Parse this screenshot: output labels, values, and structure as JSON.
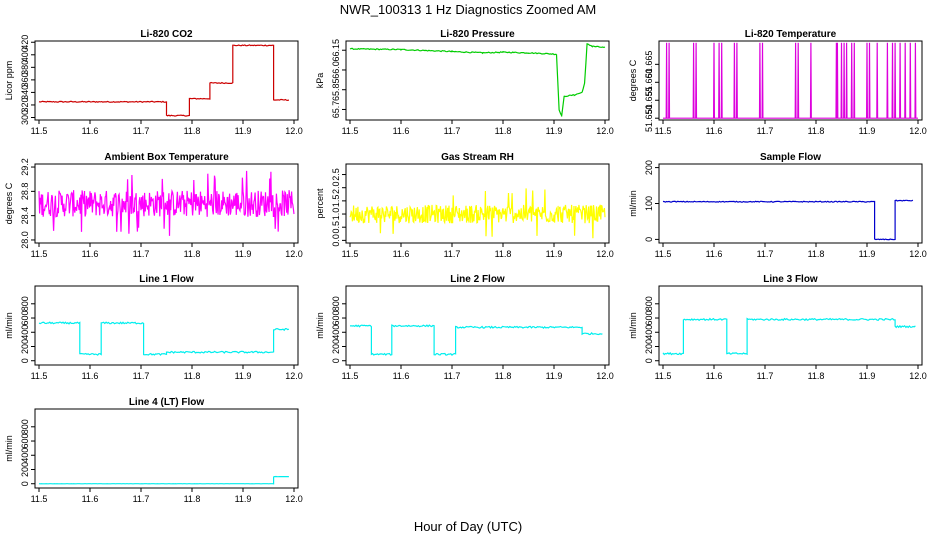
{
  "figure": {
    "title": "NWR_100313  1 Hz Diagnostics Zoomed AM",
    "xlabel": "Hour of Day (UTC)"
  },
  "chart_data": [
    {
      "type": "line",
      "title": "Li-820 CO2",
      "ylabel": "Licor ppm",
      "color": "#cc0000",
      "xlim": [
        11.5,
        12.0
      ],
      "ylim": [
        296,
        422
      ],
      "xticks": [
        "11.5",
        "11.6",
        "11.7",
        "11.8",
        "11.9",
        "12.0"
      ],
      "yticks": [
        {
          "v": 300,
          "label": "300"
        },
        {
          "v": 320,
          "label": "320"
        },
        {
          "v": 340,
          "label": "340"
        },
        {
          "v": 360,
          "label": "360"
        },
        {
          "v": 380,
          "label": "380"
        },
        {
          "v": 400,
          "label": "400"
        },
        {
          "v": 420,
          "label": "420"
        }
      ],
      "noise": 0.8,
      "series": [
        {
          "points": [
            [
              11.5,
              325
            ],
            [
              11.75,
              325
            ],
            [
              11.75,
              303
            ],
            [
              11.795,
              303
            ],
            [
              11.795,
              330
            ],
            [
              11.835,
              330
            ],
            [
              11.835,
              355
            ],
            [
              11.88,
              355
            ],
            [
              11.88,
              415
            ],
            [
              11.96,
              415
            ],
            [
              11.96,
              328
            ],
            [
              11.99,
              328
            ]
          ]
        }
      ]
    },
    {
      "type": "line",
      "title": "Li-820 Pressure",
      "ylabel": "kPa",
      "color": "#00cc00",
      "xlim": [
        11.5,
        12.0
      ],
      "ylim": [
        65.62,
        66.22
      ],
      "xticks": [
        "11.5",
        "11.6",
        "11.7",
        "11.8",
        "11.9",
        "12.0"
      ],
      "yticks": [
        {
          "v": 65.7,
          "label": "65.7"
        },
        {
          "v": 65.85,
          "label": "65.85"
        },
        {
          "v": 66.0,
          "label": "66.0"
        },
        {
          "v": 66.15,
          "label": "66.15"
        }
      ],
      "noise": 0.004,
      "series": [
        {
          "points": [
            [
              11.5,
              66.16
            ],
            [
              11.6,
              66.155
            ],
            [
              11.7,
              66.14
            ],
            [
              11.76,
              66.13
            ],
            [
              11.8,
              66.135
            ],
            [
              11.85,
              66.13
            ],
            [
              11.905,
              66.12
            ],
            [
              11.91,
              65.7
            ],
            [
              11.915,
              65.65
            ],
            [
              11.92,
              65.8
            ],
            [
              11.94,
              65.81
            ],
            [
              11.955,
              65.83
            ],
            [
              11.96,
              65.9
            ],
            [
              11.965,
              66.2
            ],
            [
              11.975,
              66.18
            ],
            [
              12.0,
              66.17
            ]
          ]
        }
      ]
    },
    {
      "type": "line",
      "title": "Li-820 Temperature",
      "ylabel": "degrees C",
      "color": "#dd00dd",
      "xlim": [
        11.5,
        12.0
      ],
      "ylim": [
        51.6495,
        51.6715
      ],
      "xticks": [
        "11.5",
        "11.6",
        "11.7",
        "11.8",
        "11.9",
        "12.0"
      ],
      "yticks": [
        {
          "v": 51.65,
          "label": "51.650"
        },
        {
          "v": 51.655,
          "label": "51.655"
        },
        {
          "v": 51.66,
          "label": "51.660"
        },
        {
          "v": 51.665,
          "label": "51.665"
        }
      ],
      "noise": 0,
      "spikes": {
        "base": 51.65,
        "top": 51.671,
        "at": [
          11.507,
          11.512,
          11.56,
          11.565,
          11.6,
          11.61,
          11.615,
          11.64,
          11.645,
          11.69,
          11.695,
          11.76,
          11.765,
          11.79,
          11.84,
          11.842,
          11.85,
          11.855,
          11.86,
          11.87,
          11.875,
          11.9,
          11.905,
          11.92,
          11.94,
          11.95,
          11.955,
          11.965,
          11.975,
          11.985,
          11.995
        ]
      }
    },
    {
      "type": "line",
      "title": "Ambient Box Temperature",
      "ylabel": "degrees C",
      "color": "#ff00ff",
      "xlim": [
        11.5,
        12.0
      ],
      "ylim": [
        27.95,
        29.25
      ],
      "xticks": [
        "11.5",
        "11.6",
        "11.7",
        "11.8",
        "11.9",
        "12.0"
      ],
      "yticks": [
        {
          "v": 28.0,
          "label": "28.0"
        },
        {
          "v": 28.4,
          "label": "28.4"
        },
        {
          "v": 28.8,
          "label": "28.8"
        },
        {
          "v": 29.2,
          "label": "29.2"
        }
      ],
      "band": {
        "center": 28.6,
        "amp": 0.22,
        "spike": 0.55
      }
    },
    {
      "type": "line",
      "title": "Gas Stream RH",
      "ylabel": "percent",
      "color": "#ffff00",
      "xlim": [
        11.5,
        12.0
      ],
      "ylim": [
        -0.1,
        2.9
      ],
      "xticks": [
        "11.5",
        "11.6",
        "11.7",
        "11.8",
        "11.9",
        "12.0"
      ],
      "yticks": [
        {
          "v": 0.0,
          "label": "0.0"
        },
        {
          "v": 0.5,
          "label": "0.5"
        },
        {
          "v": 1.0,
          "label": "1.0"
        },
        {
          "v": 1.5,
          "label": "1.5"
        },
        {
          "v": 2.0,
          "label": "2.0"
        },
        {
          "v": 2.5,
          "label": "2.5"
        }
      ],
      "band": {
        "center": 1.0,
        "amp": 0.35,
        "spike": 1.0
      }
    },
    {
      "type": "line",
      "title": "Sample Flow",
      "ylabel": "ml/min",
      "color": "#0000cc",
      "xlim": [
        11.5,
        12.0
      ],
      "ylim": [
        -10,
        210
      ],
      "xticks": [
        "11.5",
        "11.6",
        "11.7",
        "11.8",
        "11.9",
        "12.0"
      ],
      "yticks": [
        {
          "v": 0,
          "label": "0"
        },
        {
          "v": 100,
          "label": "100"
        },
        {
          "v": 200,
          "label": "200"
        }
      ],
      "noise": 1.2,
      "series": [
        {
          "points": [
            [
              11.5,
              105
            ],
            [
              11.915,
              105
            ],
            [
              11.915,
              0
            ],
            [
              11.955,
              0
            ],
            [
              11.955,
              108
            ],
            [
              11.99,
              108
            ]
          ]
        }
      ]
    },
    {
      "type": "line",
      "title": "Line 1 Flow",
      "ylabel": "ml/min",
      "color": "#00eeee",
      "xlim": [
        11.5,
        12.0
      ],
      "ylim": [
        -60,
        1050
      ],
      "xticks": [
        "11.5",
        "11.6",
        "11.7",
        "11.8",
        "11.9",
        "12.0"
      ],
      "yticks": [
        {
          "v": 0,
          "label": "0"
        },
        {
          "v": 200,
          "label": "200"
        },
        {
          "v": 400,
          "label": "400"
        },
        {
          "v": 600,
          "label": "600"
        },
        {
          "v": 800,
          "label": "800"
        }
      ],
      "noise": 12,
      "series": [
        {
          "points": [
            [
              11.5,
              530
            ],
            [
              11.58,
              530
            ],
            [
              11.58,
              90
            ],
            [
              11.622,
              90
            ],
            [
              11.622,
              530
            ],
            [
              11.705,
              530
            ],
            [
              11.705,
              90
            ],
            [
              11.75,
              90
            ],
            [
              11.75,
              120
            ],
            [
              11.96,
              120
            ],
            [
              11.96,
              440
            ],
            [
              11.99,
              440
            ]
          ]
        }
      ]
    },
    {
      "type": "line",
      "title": "Line 2 Flow",
      "ylabel": "ml/min",
      "color": "#00eeee",
      "xlim": [
        11.5,
        12.0
      ],
      "ylim": [
        -60,
        1050
      ],
      "xticks": [
        "11.5",
        "11.6",
        "11.7",
        "11.8",
        "11.9",
        "12.0"
      ],
      "yticks": [
        {
          "v": 0,
          "label": "0"
        },
        {
          "v": 200,
          "label": "200"
        },
        {
          "v": 400,
          "label": "400"
        },
        {
          "v": 600,
          "label": "600"
        },
        {
          "v": 800,
          "label": "800"
        }
      ],
      "noise": 12,
      "series": [
        {
          "points": [
            [
              11.5,
              490
            ],
            [
              11.542,
              490
            ],
            [
              11.542,
              90
            ],
            [
              11.582,
              90
            ],
            [
              11.582,
              490
            ],
            [
              11.665,
              490
            ],
            [
              11.665,
              90
            ],
            [
              11.707,
              90
            ],
            [
              11.707,
              470
            ],
            [
              11.955,
              470
            ],
            [
              11.955,
              380
            ],
            [
              11.995,
              380
            ]
          ]
        }
      ]
    },
    {
      "type": "line",
      "title": "Line 3 Flow",
      "ylabel": "ml/min",
      "color": "#00eeee",
      "xlim": [
        11.5,
        12.0
      ],
      "ylim": [
        -60,
        1050
      ],
      "xticks": [
        "11.5",
        "11.6",
        "11.7",
        "11.8",
        "11.9",
        "12.0"
      ],
      "yticks": [
        {
          "v": 0,
          "label": "0"
        },
        {
          "v": 200,
          "label": "200"
        },
        {
          "v": 400,
          "label": "400"
        },
        {
          "v": 600,
          "label": "600"
        },
        {
          "v": 800,
          "label": "800"
        }
      ],
      "noise": 12,
      "series": [
        {
          "points": [
            [
              11.5,
              100
            ],
            [
              11.54,
              100
            ],
            [
              11.54,
              580
            ],
            [
              11.625,
              580
            ],
            [
              11.625,
              100
            ],
            [
              11.665,
              100
            ],
            [
              11.665,
              580
            ],
            [
              11.955,
              580
            ],
            [
              11.955,
              480
            ],
            [
              11.995,
              480
            ]
          ]
        }
      ]
    },
    {
      "type": "line",
      "title": "Line 4 (LT) Flow",
      "ylabel": "ml/min",
      "color": "#00eeee",
      "xlim": [
        11.5,
        12.0
      ],
      "ylim": [
        -60,
        1050
      ],
      "xticks": [
        "11.5",
        "11.6",
        "11.7",
        "11.8",
        "11.9",
        "12.0"
      ],
      "yticks": [
        {
          "v": 0,
          "label": "0"
        },
        {
          "v": 200,
          "label": "200"
        },
        {
          "v": 400,
          "label": "400"
        },
        {
          "v": 600,
          "label": "600"
        },
        {
          "v": 800,
          "label": "800"
        }
      ],
      "noise": 1,
      "series": [
        {
          "points": [
            [
              11.5,
              0
            ],
            [
              11.96,
              0
            ],
            [
              11.96,
              100
            ],
            [
              11.99,
              100
            ]
          ]
        }
      ]
    }
  ]
}
